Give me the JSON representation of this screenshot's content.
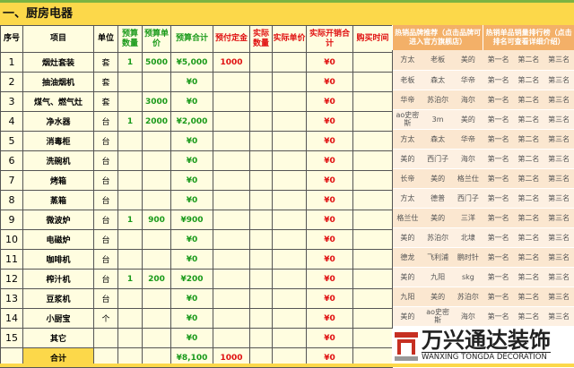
{
  "section_title": "一、厨房电器",
  "headers": [
    "序号",
    "项目",
    "单位",
    "预算数量",
    "预算单价",
    "预算合计",
    "预付定金",
    "实际数量",
    "实际单价",
    "实际开销合计",
    "购买时间"
  ],
  "rows": [
    [
      "1",
      "烟灶套装",
      "套",
      "1",
      "5000",
      "¥5,000",
      "1000",
      "",
      "",
      "¥0",
      ""
    ],
    [
      "2",
      "抽油烟机",
      "套",
      "",
      "",
      "¥0",
      "",
      "",
      "",
      "¥0",
      ""
    ],
    [
      "3",
      "煤气、燃气灶",
      "套",
      "",
      "3000",
      "¥0",
      "",
      "",
      "",
      "¥0",
      ""
    ],
    [
      "4",
      "净水器",
      "台",
      "1",
      "2000",
      "¥2,000",
      "",
      "",
      "",
      "¥0",
      ""
    ],
    [
      "5",
      "消毒柜",
      "台",
      "",
      "",
      "¥0",
      "",
      "",
      "",
      "¥0",
      ""
    ],
    [
      "6",
      "洗碗机",
      "台",
      "",
      "",
      "¥0",
      "",
      "",
      "",
      "¥0",
      ""
    ],
    [
      "7",
      "烤箱",
      "台",
      "",
      "",
      "¥0",
      "",
      "",
      "",
      "¥0",
      ""
    ],
    [
      "8",
      "蒸箱",
      "台",
      "",
      "",
      "¥0",
      "",
      "",
      "",
      "¥0",
      ""
    ],
    [
      "9",
      "微波炉",
      "台",
      "1",
      "900",
      "¥900",
      "",
      "",
      "",
      "¥0",
      ""
    ],
    [
      "10",
      "电磁炉",
      "台",
      "",
      "",
      "¥0",
      "",
      "",
      "",
      "¥0",
      ""
    ],
    [
      "11",
      "咖啡机",
      "台",
      "",
      "",
      "¥0",
      "",
      "",
      "",
      "¥0",
      ""
    ],
    [
      "12",
      "榨汁机",
      "台",
      "1",
      "200",
      "¥200",
      "",
      "",
      "",
      "¥0",
      ""
    ],
    [
      "13",
      "豆浆机",
      "台",
      "",
      "",
      "¥0",
      "",
      "",
      "",
      "¥0",
      ""
    ],
    [
      "14",
      "小厨宝",
      "个",
      "",
      "",
      "¥0",
      "",
      "",
      "",
      "¥0",
      ""
    ],
    [
      "15",
      "其它",
      "",
      "",
      "",
      "¥0",
      "",
      "",
      "",
      "¥0",
      ""
    ]
  ],
  "total": {
    "label": "合计",
    "budget_total": "¥8,100",
    "deposit": "1000",
    "actual_total": "¥0"
  },
  "right_panel": {
    "brand_header": "热销品牌推荐（点击品牌可进入官方旗舰店）",
    "rank_header": "热销单品销量排行榜（点击排名可查看详细介绍）",
    "ranks": [
      "第一名",
      "第二名",
      "第三名"
    ],
    "brands": [
      [
        "方太",
        "老板",
        "美的"
      ],
      [
        "老板",
        "森太",
        "华帝"
      ],
      [
        "华帝",
        "苏泊尔",
        "海尔"
      ],
      [
        "ao史密斯",
        "3m",
        "美的"
      ],
      [
        "方太",
        "森太",
        "华帝"
      ],
      [
        "美的",
        "西门子",
        "海尔"
      ],
      [
        "长帝",
        "美的",
        "格兰仕"
      ],
      [
        "方太",
        "德普",
        "西门子"
      ],
      [
        "格兰仕",
        "美的",
        "三洋"
      ],
      [
        "美的",
        "苏泊尔",
        "北埭"
      ],
      [
        "德龙",
        "飞利浦",
        "鹏时针"
      ],
      [
        "美的",
        "九阳",
        "skg"
      ],
      [
        "九阳",
        "美的",
        "苏泊尔"
      ],
      [
        "美的",
        "ao史密斯",
        "海尔"
      ]
    ]
  },
  "watermark": {
    "cn": "万兴通达装饰",
    "en": "WANXING TONGDA DECORATION"
  },
  "colors": {
    "green": "#1a9a1a",
    "red": "#e01010",
    "yellow": "#fcd84a",
    "orange": "#f3b068"
  }
}
